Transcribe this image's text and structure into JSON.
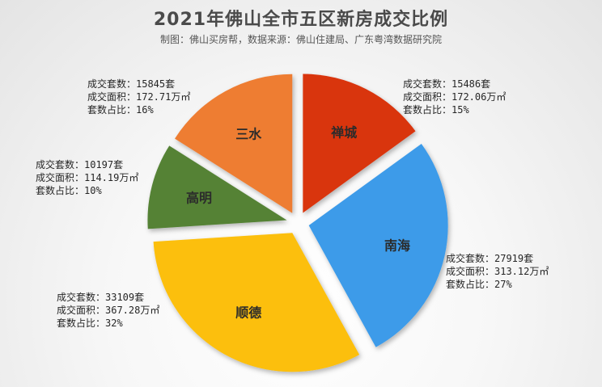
{
  "title": "2021年佛山全市五区新房成交比例",
  "subtitle": "制图：佛山买房帮，数据来源：佛山住建局、广东粤湾数据研究院",
  "chart_data": {
    "type": "pie",
    "exploded": true,
    "title": "2021年佛山全市五区新房成交比例",
    "categories": [
      "禅城",
      "南海",
      "顺德",
      "高明",
      "三水"
    ],
    "values": [
      15,
      27,
      32,
      10,
      16
    ],
    "colors": [
      "#d93410",
      "#3d9be9",
      "#fcbf09",
      "#548235",
      "#ee7d31"
    ],
    "annotations": [
      {
        "district": "禅城",
        "l1": "成交套数：15486套",
        "l2": "成交面积：172.06万㎡",
        "l3": "套数占比：15%"
      },
      {
        "district": "南海",
        "l1": "成交套数：27919套",
        "l2": "成交面积：313.12万㎡",
        "l3": "套数占比：27%"
      },
      {
        "district": "顺德",
        "l1": "成交套数：33109套",
        "l2": "成交面积：367.28万㎡",
        "l3": "套数占比：32%"
      },
      {
        "district": "高明",
        "l1": "成交套数：10197套",
        "l2": "成交面积：114.19万㎡",
        "l3": "套数占比：10%"
      },
      {
        "district": "三水",
        "l1": "成交套数：15845套",
        "l2": "成交面积：172.71万㎡",
        "l3": "套数占比：16%"
      }
    ]
  }
}
